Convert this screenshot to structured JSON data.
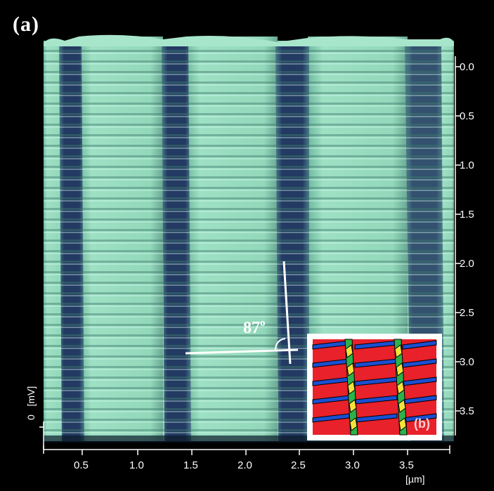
{
  "panel_a_label": "(a)",
  "panel_b_label": "(b)",
  "angle": {
    "value": "87",
    "unit": "o"
  },
  "y_ticks": [
    "0.0",
    "0.5",
    "1.0",
    "1.5",
    "2.0",
    "2.5",
    "3.0",
    "3.5"
  ],
  "x_ticks": [
    "0.5",
    "1.0",
    "1.5",
    "2.0",
    "2.5",
    "3.0",
    "3.5"
  ],
  "x_unit": "[µm]",
  "z_axis": {
    "zero": "0",
    "unit": "[mV]"
  },
  "colors": {
    "background": "#000000",
    "stripe_green": "#8fd6b8",
    "groove_blue": "#2a3f66",
    "inset_red": "#e8212a",
    "inset_blue": "#1b4fd1",
    "inset_green": "#2bb34a",
    "inset_yellow": "#f2e23a"
  }
}
